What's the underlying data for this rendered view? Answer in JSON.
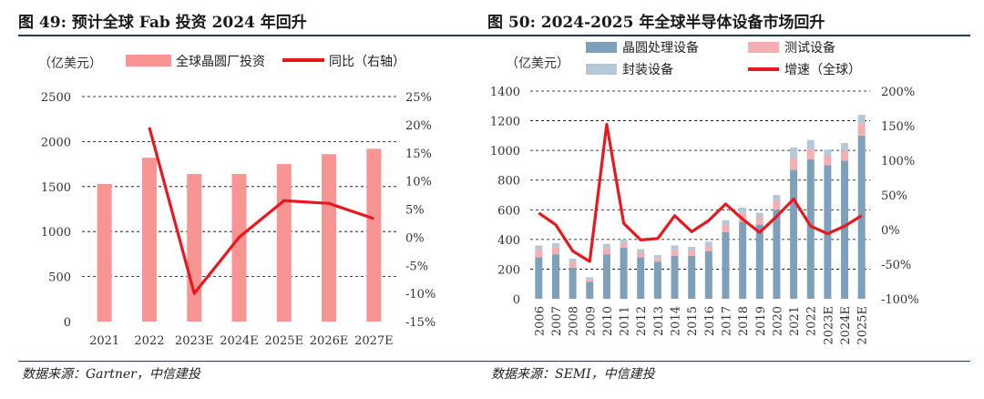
{
  "colors": {
    "bar_fab": "#f89593",
    "line": "#e8181e",
    "bar_wafer": "#7fa0bb",
    "bar_test": "#f5aeb2",
    "bar_package": "#b5c8d8",
    "rule": "#1f3b5a"
  },
  "left": {
    "title": "图 49: 预计全球 Fab 投资 2024 年回升",
    "source": "数据来源：Gartner，中信建投",
    "chart_data": {
      "type": "bar",
      "unit_label": "（亿美元）",
      "legend": [
        "全球晶圆厂投资",
        "同比（右轴）"
      ],
      "categories": [
        "2021",
        "2022",
        "2023E",
        "2024E",
        "2025E",
        "2026E",
        "2027E"
      ],
      "series": [
        {
          "name": "全球晶圆厂投资",
          "type": "bar",
          "axis": "left",
          "values": [
            1530,
            1820,
            1640,
            1640,
            1750,
            1860,
            1920
          ]
        },
        {
          "name": "同比（右轴）",
          "type": "line",
          "axis": "right",
          "values": [
            null,
            19.5,
            -10,
            0,
            6.5,
            6,
            3.3
          ]
        }
      ],
      "yleft": {
        "min": 0,
        "max": 2500,
        "ticks": [
          "0",
          "500",
          "1000",
          "1500",
          "2000",
          "2500"
        ]
      },
      "yright": {
        "min": -15,
        "max": 25,
        "ticks": [
          "-15%",
          "-10%",
          "-5%",
          "0%",
          "5%",
          "10%",
          "15%",
          "20%",
          "25%"
        ]
      },
      "grid": "dashed"
    }
  },
  "right": {
    "title": "图 50: 2024-2025 年全球半导体设备市场回升",
    "source": "数据来源：SEMI，中信建投",
    "chart_data": {
      "type": "bar",
      "stacked": true,
      "unit_label": "（亿美元）",
      "legend": [
        "晶圆处理设备",
        "测试设备",
        "封装设备",
        "增速（全球）"
      ],
      "categories": [
        "2006",
        "2007",
        "2008",
        "2009",
        "2010",
        "2011",
        "2012",
        "2013",
        "2014",
        "2015",
        "2016",
        "2017",
        "2018",
        "2019",
        "2020",
        "2021",
        "2022",
        "2023E",
        "2024E",
        "2025E"
      ],
      "series": [
        {
          "name": "晶圆处理设备",
          "type": "bar",
          "axis": "left",
          "values": [
            280,
            300,
            210,
            115,
            300,
            345,
            280,
            250,
            290,
            290,
            320,
            450,
            520,
            500,
            600,
            870,
            940,
            900,
            930,
            1100
          ]
        },
        {
          "name": "测试设备",
          "type": "bar",
          "axis": "left",
          "values": [
            50,
            45,
            35,
            15,
            40,
            30,
            30,
            25,
            40,
            35,
            35,
            45,
            55,
            50,
            60,
            80,
            70,
            65,
            70,
            80
          ]
        },
        {
          "name": "封装设备",
          "type": "bar",
          "axis": "left",
          "values": [
            30,
            30,
            25,
            15,
            30,
            25,
            25,
            20,
            30,
            25,
            30,
            35,
            40,
            30,
            40,
            70,
            60,
            40,
            50,
            60
          ]
        },
        {
          "name": "增速（全球）",
          "type": "line",
          "axis": "right",
          "values": [
            24,
            7,
            -31,
            -46,
            152,
            9,
            -15,
            -13,
            20,
            -3,
            13,
            37,
            15,
            -4,
            19,
            44,
            5,
            -6,
            5,
            20
          ]
        }
      ],
      "yleft": {
        "min": 0,
        "max": 1400,
        "ticks": [
          "0",
          "200",
          "400",
          "600",
          "800",
          "1000",
          "1200",
          "1400"
        ]
      },
      "yright": {
        "min": -100,
        "max": 200,
        "ticks": [
          "-100%",
          "-50%",
          "0%",
          "50%",
          "100%",
          "150%",
          "200%"
        ]
      },
      "grid": "dashed"
    }
  }
}
